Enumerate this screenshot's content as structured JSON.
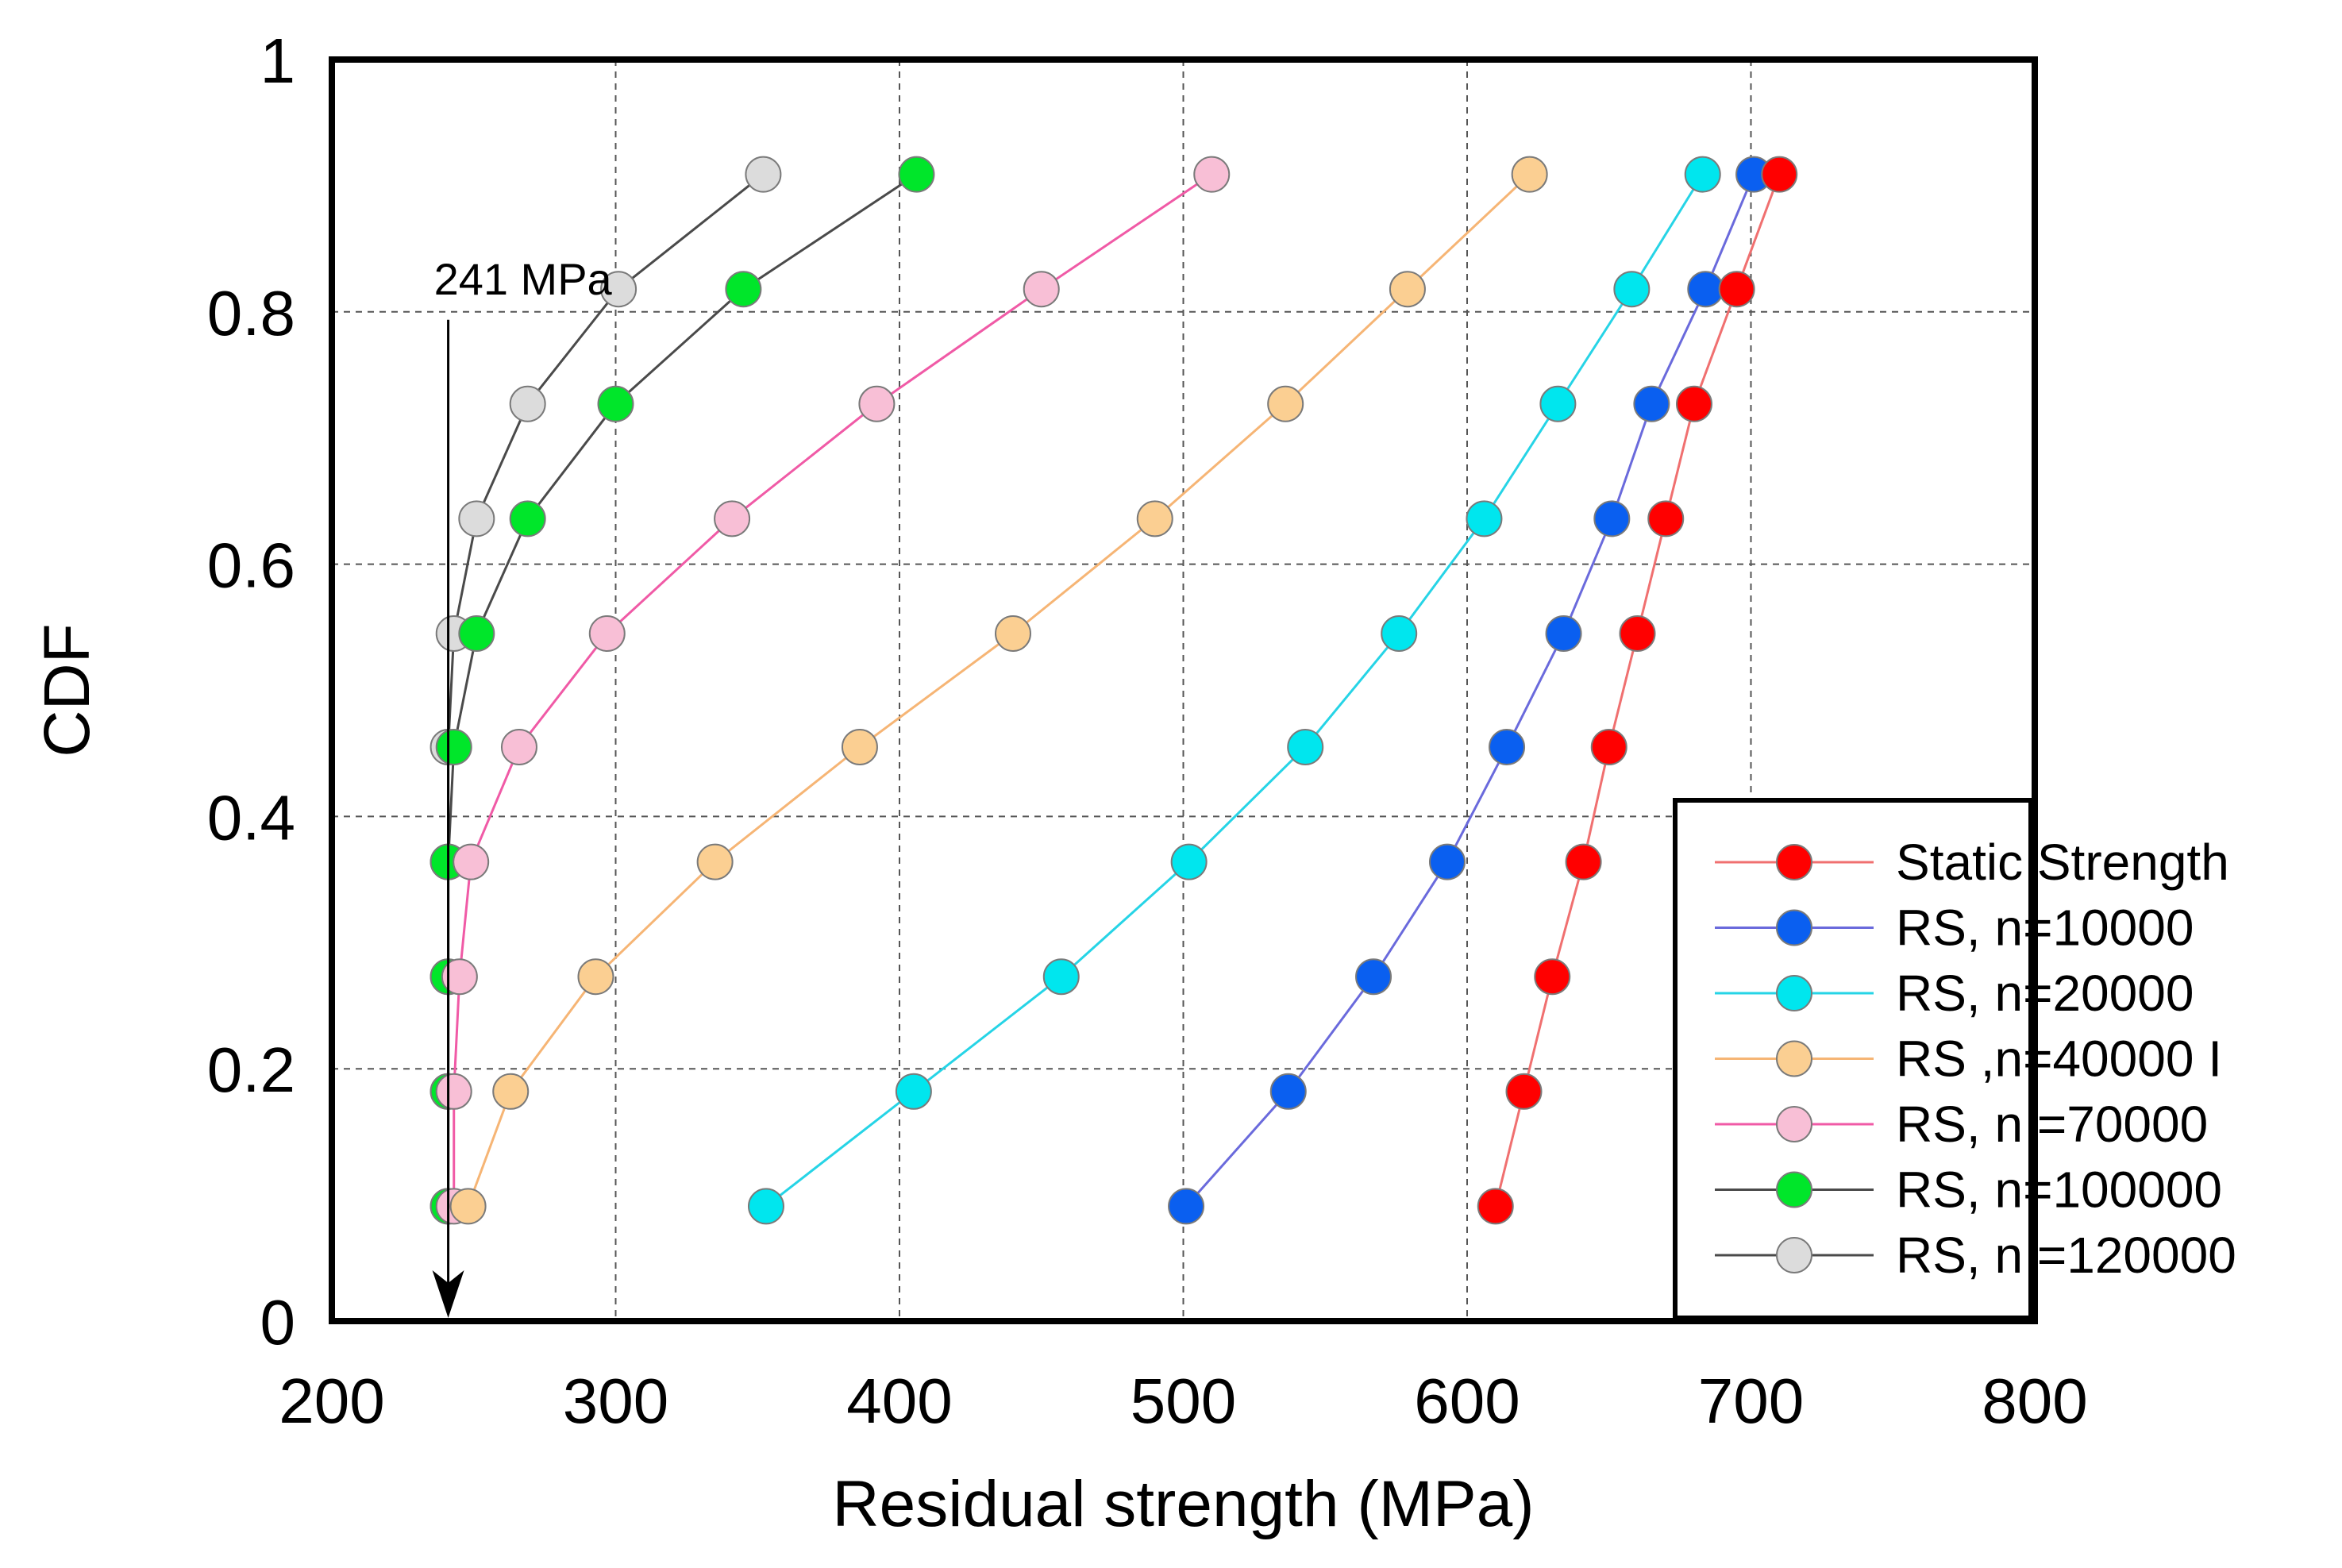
{
  "chart_data": {
    "type": "line",
    "title": "",
    "xlabel": "Residual strength (MPa)",
    "ylabel": "CDF",
    "xlim": [
      200,
      800
    ],
    "ylim": [
      0,
      1
    ],
    "xticks": [
      "200",
      "300",
      "400",
      "500",
      "600",
      "700",
      "800"
    ],
    "yticks": [
      "0",
      "0.2",
      "0.4",
      "0.6",
      "0.8",
      "1"
    ],
    "grid": true,
    "legend_position": "bottom-right",
    "y": [
      0.091,
      0.182,
      0.273,
      0.364,
      0.455,
      0.545,
      0.636,
      0.727,
      0.818,
      0.909
    ],
    "series": [
      {
        "name": "Static Strength",
        "line_color": "#f07070",
        "marker_color": "#ff0000",
        "x": [
          610,
          620,
          630,
          641,
          650,
          660,
          670,
          680,
          695,
          710
        ]
      },
      {
        "name": "RS, n=10000",
        "line_color": "#6a6adc",
        "marker_color": "#0a5ff0",
        "x": [
          501,
          537,
          567,
          593,
          614,
          634,
          651,
          665,
          684,
          701
        ]
      },
      {
        "name": "RS, n=20000",
        "line_color": "#26d4e6",
        "marker_color": "#00e6ee",
        "x": [
          353,
          405,
          457,
          502,
          543,
          576,
          606,
          632,
          658,
          683
        ]
      },
      {
        "name": "RS ,n=40000 I",
        "line_color": "#f6b575",
        "marker_color": "#fbcf92",
        "x": [
          248,
          263,
          293,
          335,
          386,
          440,
          490,
          536,
          579,
          622
        ]
      },
      {
        "name": "RS, n =70000",
        "line_color": "#f05aa6",
        "marker_color": "#f8bfd6",
        "x": [
          243,
          243,
          245,
          249,
          266,
          297,
          341,
          392,
          450,
          510
        ]
      },
      {
        "name": "RS, n=100000",
        "line_color": "#4a4a4a",
        "marker_color": "#00e62a",
        "x": [
          241,
          241,
          241,
          241,
          243,
          251,
          269,
          300,
          345,
          406
        ]
      },
      {
        "name": "RS, n =120000",
        "line_color": "#4a4a4a",
        "marker_color": "#dcdcdc",
        "x": [
          241,
          241,
          241,
          241,
          241,
          243,
          251,
          269,
          301,
          352
        ]
      }
    ],
    "annotations": [
      {
        "text": "241 MPa",
        "x": 241,
        "y_from": 0.8,
        "y_to": 0
      }
    ]
  }
}
